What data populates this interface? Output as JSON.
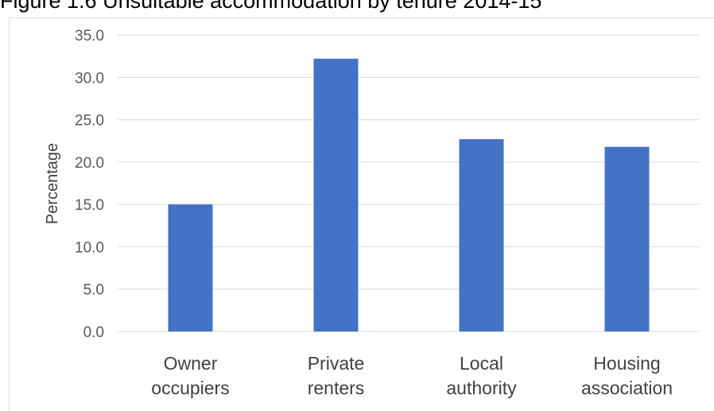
{
  "figure_title": "Figure 1.6 Unsuitable accommodation by tenure 2014-15",
  "chart_data": {
    "type": "bar",
    "title": "Figure 1.6 Unsuitable accommodation by tenure 2014-15",
    "xlabel": "",
    "ylabel": "Percentage",
    "categories": [
      [
        "Owner",
        "occupiers"
      ],
      [
        "Private",
        "renters"
      ],
      [
        "Local",
        "authority"
      ],
      [
        "Housing",
        "association"
      ]
    ],
    "values": [
      15.0,
      32.2,
      22.7,
      21.8
    ],
    "ylim": [
      0,
      35
    ],
    "yticks": [
      "0.0",
      "5.0",
      "10.0",
      "15.0",
      "20.0",
      "25.0",
      "30.0",
      "35.0"
    ],
    "grid": true,
    "legend": "none",
    "bar_color": "#4472c4",
    "grid_color": "#d9d9d9"
  }
}
